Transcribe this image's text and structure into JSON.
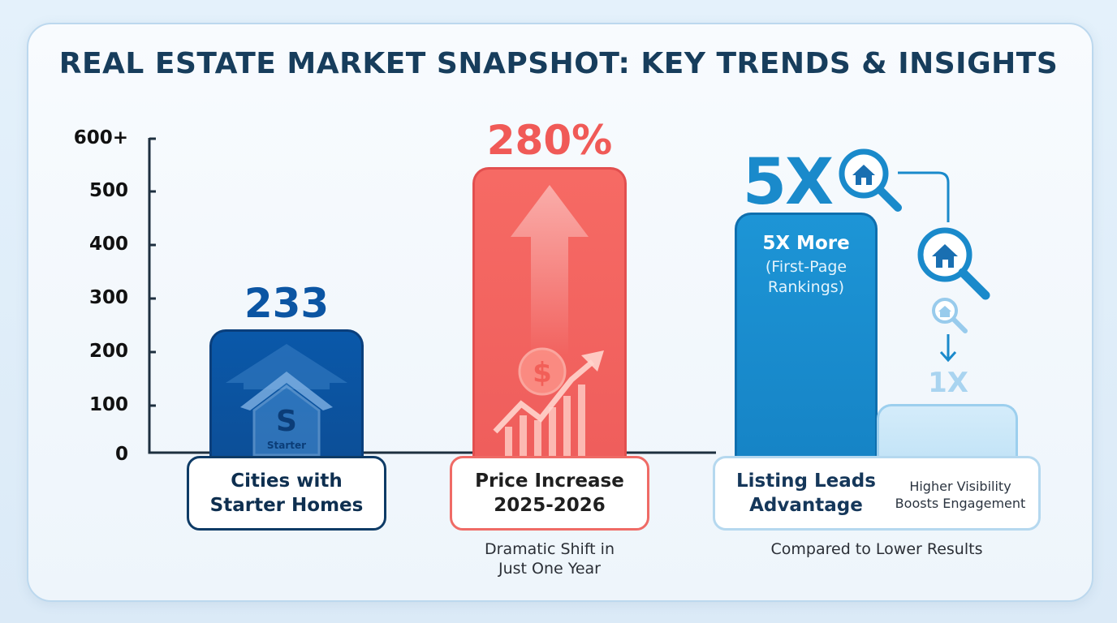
{
  "title": "REAL ESTATE MARKET SNAPSHOT: KEY TRENDS & INSIGHTS",
  "colors": {
    "blue_dark": "#0b57a6",
    "red": "#f26363",
    "blue_mid": "#1b8fd0",
    "blue_light": "#cfe8f7",
    "title": "#173d5c"
  },
  "chart_data": {
    "type": "bar",
    "ylim": [
      0,
      600
    ],
    "y_ticks": [
      "0",
      "100",
      "200",
      "300",
      "400",
      "500",
      "600+"
    ],
    "xlabel": "",
    "ylabel": "",
    "categories": [
      "Cities with Starter Homes",
      "Price Increase 2025-2026",
      "Listing Leads Advantage (5X)",
      "Listing Leads Advantage (1X)"
    ],
    "values": [
      233,
      540,
      450,
      90
    ],
    "data_labels": [
      "233",
      "280%",
      "5X",
      "1X"
    ]
  },
  "bars": {
    "starter": {
      "value_label": "233",
      "icon_text": "S",
      "icon_caption": "Starter",
      "label_line1": "Cities with",
      "label_line2": "Starter Homes"
    },
    "price": {
      "value_label": "280%",
      "label_line1": "Price Increase",
      "label_line2": "2025-2026",
      "note_line1": "Dramatic Shift in",
      "note_line2": "Just One Year"
    },
    "leads": {
      "value_label": "5X",
      "inner_title": "5X More",
      "inner_sub1": "(First-Page",
      "inner_sub2": "Rankings)",
      "small_value_label": "1X",
      "label_line1": "Listing Leads",
      "label_line2": "Advantage",
      "side_line1": "Higher Visibility",
      "side_line2": "Boosts Engagement",
      "note": "Compared to Lower Results"
    }
  }
}
